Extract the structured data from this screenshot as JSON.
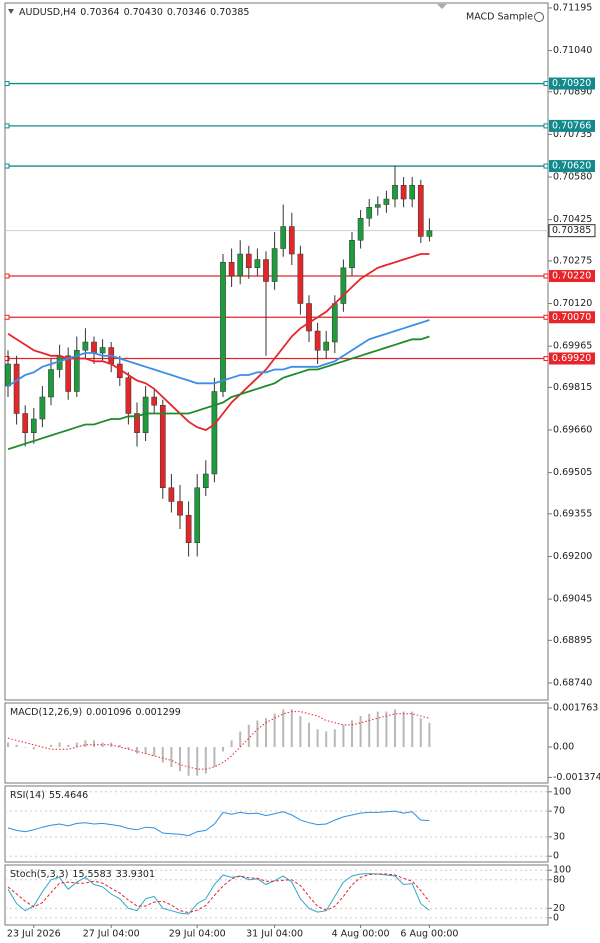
{
  "chart_data": [
    {
      "type": "candlestick",
      "title": "AUDUSD,H4",
      "ohlc_header": [
        0.70364,
        {
          "value": 0.7043,
          "label": "0.70430"
        },
        0.70346,
        0.70385
      ],
      "expert": "MACD Sample",
      "categories": [
        null,
        null,
        null,
        "23 Jul 2026",
        null,
        null,
        null,
        null,
        null,
        null,
        null,
        null,
        "27 Jul 04:00",
        null,
        null,
        null,
        null,
        null,
        null,
        null,
        null,
        null,
        "29 Jul 04:00",
        null,
        null,
        null,
        null,
        null,
        null,
        null,
        null,
        "31 Jul 04:00",
        null,
        null,
        null,
        null,
        null,
        null,
        null,
        null,
        null,
        "4 Aug 00:00",
        null,
        null,
        null,
        null,
        null,
        null,
        null,
        "6 Aug 00:00"
      ],
      "open": [
        0.6982,
        0.699,
        0.6972,
        0.6965,
        0.697,
        0.6978,
        0.6988,
        0.6993,
        0.698,
        0.6995,
        0.6998,
        0.6994,
        0.6996,
        0.699,
        0.6985,
        0.6972,
        0.6965,
        0.6978,
        0.6975,
        0.6945,
        0.694,
        0.6935,
        0.6925,
        0.6945,
        0.695,
        0.698,
        0.7027,
        0.7022,
        0.703,
        0.7025,
        0.7028,
        0.702,
        0.7032,
        0.704,
        0.703,
        0.7012,
        0.7002,
        0.6995,
        0.6998,
        0.7012,
        0.7025,
        0.7035,
        0.7043,
        0.7047,
        0.7048,
        0.705,
        0.7055,
        0.705,
        0.7055,
        0.70364
      ],
      "high": [
        0.6995,
        0.6993,
        0.6975,
        0.6974,
        0.6982,
        0.6992,
        0.6997,
        0.6996,
        0.7,
        0.7003,
        0.7,
        0.6999,
        0.6998,
        0.6993,
        0.6987,
        0.6976,
        0.6982,
        0.6981,
        0.6977,
        0.695,
        0.6946,
        0.694,
        0.695,
        0.6955,
        0.6985,
        0.703,
        0.7032,
        0.7035,
        0.7033,
        0.7032,
        0.7031,
        0.7038,
        0.7048,
        0.7045,
        0.7033,
        0.7015,
        0.7005,
        0.7002,
        0.7015,
        0.7028,
        0.7038,
        0.7046,
        0.705,
        0.7051,
        0.7053,
        0.7062,
        0.7058,
        0.7058,
        0.7057,
        0.7043
      ],
      "low": [
        0.6978,
        0.6968,
        0.696,
        0.6961,
        0.6967,
        0.6975,
        0.6985,
        0.6977,
        0.6978,
        0.6992,
        0.699,
        0.6991,
        0.6987,
        0.6982,
        0.6968,
        0.696,
        0.6962,
        0.6972,
        0.6941,
        0.6936,
        0.693,
        0.692,
        0.692,
        0.6942,
        0.6947,
        0.6978,
        0.7018,
        0.7019,
        0.7021,
        0.7022,
        0.6993,
        0.7017,
        0.7029,
        0.7026,
        0.7008,
        0.6998,
        0.699,
        0.6992,
        0.6994,
        0.7009,
        0.7022,
        0.7032,
        0.704,
        0.7044,
        0.7045,
        0.7047,
        0.7047,
        0.7047,
        0.7034,
        0.70346
      ],
      "close": [
        0.699,
        0.6972,
        0.6965,
        0.697,
        0.6978,
        0.6988,
        0.6993,
        0.698,
        0.6995,
        0.6998,
        0.6994,
        0.6996,
        0.699,
        0.6985,
        0.6972,
        0.6965,
        0.6978,
        0.6975,
        0.6945,
        0.694,
        0.6935,
        0.6925,
        0.6945,
        0.695,
        0.698,
        0.7027,
        0.7022,
        0.703,
        0.7025,
        0.7028,
        0.702,
        0.7032,
        0.704,
        0.703,
        0.7012,
        0.7002,
        0.6995,
        0.6998,
        0.7012,
        0.7025,
        0.7035,
        0.7043,
        0.7047,
        0.7048,
        0.705,
        0.7055,
        0.705,
        0.7055,
        0.70364,
        0.70385
      ],
      "up_color": "#1f9a3c",
      "down_color": "#e0282a",
      "series": [
        {
          "color": "#e8242a",
          "values": [
            0.7001,
            0.6999,
            0.6997,
            0.6995,
            0.6994,
            0.6993,
            0.6993,
            0.6992,
            0.6992,
            0.6992,
            0.6991,
            0.6991,
            0.699,
            0.6988,
            0.6986,
            0.6984,
            0.6983,
            0.6981,
            0.6978,
            0.6975,
            0.6972,
            0.6969,
            0.6967,
            0.6966,
            0.6968,
            0.6972,
            0.6976,
            0.6979,
            0.6982,
            0.6985,
            0.6988,
            0.6992,
            0.6996,
            0.7,
            0.7003,
            0.7005,
            0.7007,
            0.7009,
            0.7012,
            0.7015,
            0.7018,
            0.7021,
            0.7023,
            0.7025,
            0.7026,
            0.7027,
            0.7028,
            0.7029,
            0.703,
            0.703
          ]
        },
        {
          "color": "#3a8ee6",
          "values": [
            0.6982,
            0.6984,
            0.6986,
            0.6987,
            0.6989,
            0.699,
            0.6991,
            0.6992,
            0.6993,
            0.6994,
            0.6994,
            0.6993,
            0.6993,
            0.6992,
            0.6991,
            0.699,
            0.6989,
            0.6988,
            0.6987,
            0.6986,
            0.6985,
            0.6984,
            0.6983,
            0.6983,
            0.6983,
            0.6984,
            0.6985,
            0.6986,
            0.6986,
            0.6987,
            0.6987,
            0.6988,
            0.6988,
            0.6989,
            0.6989,
            0.6989,
            0.6989,
            0.699,
            0.6991,
            0.6993,
            0.6995,
            0.6997,
            0.6999,
            0.7,
            0.7001,
            0.7002,
            0.7003,
            0.7004,
            0.7005,
            0.7006
          ]
        },
        {
          "color": "#1e8c2a",
          "values": [
            0.6959,
            0.696,
            0.6961,
            0.6962,
            0.6963,
            0.6964,
            0.6965,
            0.6966,
            0.6967,
            0.6968,
            0.6968,
            0.6969,
            0.697,
            0.697,
            0.6971,
            0.6971,
            0.6972,
            0.6972,
            0.6972,
            0.6972,
            0.6972,
            0.6972,
            0.6973,
            0.6974,
            0.6975,
            0.6976,
            0.6978,
            0.6979,
            0.698,
            0.6981,
            0.6982,
            0.6983,
            0.6985,
            0.6986,
            0.6987,
            0.6988,
            0.6988,
            0.6989,
            0.699,
            0.6991,
            0.6992,
            0.6993,
            0.6994,
            0.6995,
            0.6996,
            0.6997,
            0.6998,
            0.6999,
            0.6999,
            0.7
          ]
        }
      ],
      "levels": [
        {
          "value": 0.7092,
          "label": "0.70920",
          "color": "#128a8c"
        },
        {
          "value": 0.70766,
          "label": "0.70766",
          "color": "#128a8c"
        },
        {
          "value": 0.7062,
          "label": "0.70620",
          "color": "#128a8c"
        },
        {
          "value": 0.7022,
          "label": "0.70220",
          "color": "#e8242a"
        },
        {
          "value": 0.7007,
          "label": "0.70070",
          "color": "#e8242a"
        },
        {
          "value": 0.6992,
          "label": "0.69920",
          "color": "#e8242a"
        }
      ],
      "last_price": 0.70385,
      "ylim": [
        0.68678,
        0.71213
      ],
      "yticks": [
        0.71195,
        {
          "value": 0.7104,
          "label": "0.71040"
        },
        {
          "value": 0.7089,
          "label": "0.70890"
        },
        0.70735,
        {
          "value": 0.7058,
          "label": "0.70580"
        },
        0.70425,
        0.70275,
        {
          "value": 0.7012,
          "label": "0.70120"
        },
        0.69965,
        0.69815,
        {
          "value": 0.6966,
          "label": "0.69660"
        },
        0.69505,
        0.69355,
        {
          "value": 0.692,
          "label": "0.69200"
        },
        0.69045,
        0.68895,
        {
          "value": 0.6874,
          "label": "0.68740"
        }
      ]
    },
    {
      "type": "macd",
      "title": "MACD(12,26,9)",
      "readouts": [
        0.001096,
        0.001299
      ],
      "series": [
        {
          "style": "histogram",
          "color": "#b8b8b8",
          "values": [
            0.0002,
            0.0001,
            0,
            -0.0001,
            0,
            0.0001,
            0.0002,
            0.0001,
            0.0002,
            0.0003,
            0.0003,
            0.0002,
            0.0002,
            0.0001,
            -0.0001,
            -0.0003,
            -0.0003,
            -0.0004,
            -0.0007,
            -0.0009,
            -0.0011,
            -0.0013,
            -0.0013,
            -0.0012,
            -0.0009,
            -0.0002,
            0.0003,
            0.0007,
            0.001,
            0.0012,
            0.0013,
            0.0015,
            0.0017,
            0.0017,
            0.0014,
            0.0011,
            0.0008,
            0.0007,
            0.0008,
            0.001,
            0.0012,
            0.0014,
            0.0015,
            0.0016,
            0.0016,
            0.0017,
            0.0016,
            0.0016,
            0.0013,
            0.001096
          ]
        },
        {
          "style": "dotted",
          "color": "#e8242a",
          "values": [
            0.0004,
            0.0003,
            0.0002,
            0.0001,
            0,
            -0.0001,
            -0.0001,
            -0.0001,
            0,
            0.0001,
            0.0001,
            0.0001,
            0.0001,
            0,
            -0.0001,
            -0.0002,
            -0.0003,
            -0.0004,
            -0.0005,
            -0.0006,
            -0.0008,
            -0.0009,
            -0.001,
            -0.001,
            -0.0009,
            -0.0007,
            -0.0004,
            0,
            0.0004,
            0.0008,
            0.0011,
            0.0013,
            0.0015,
            0.0016,
            0.0016,
            0.0015,
            0.0014,
            0.0012,
            0.0011,
            0.001,
            0.001,
            0.0011,
            0.0012,
            0.0013,
            0.0014,
            0.0015,
            0.0015,
            0.0015,
            0.0014,
            0.001299
          ]
        }
      ],
      "ylim": [
        -0.001627,
        0.001989
      ],
      "yticks": [
        0.001763,
        {
          "value": 0,
          "label": "0.00"
        },
        -0.001374
      ]
    },
    {
      "type": "line",
      "title": "RSI(14)",
      "readouts": [
        55.4646
      ],
      "series": [
        {
          "style": "solid",
          "color": "#2f8fe0",
          "values": [
            44,
            40,
            38,
            41,
            45,
            48,
            50,
            47,
            51,
            52,
            50,
            51,
            49,
            47,
            43,
            41,
            45,
            44,
            36,
            35,
            34,
            32,
            38,
            40,
            50,
            68,
            65,
            68,
            66,
            67,
            63,
            66,
            69,
            64,
            56,
            52,
            49,
            50,
            56,
            61,
            64,
            67,
            68,
            68,
            69,
            70,
            67,
            69,
            56,
            55.4646
          ]
        }
      ],
      "ylim": [
        -9,
        109
      ],
      "yticks": [
        100,
        70,
        30,
        0
      ],
      "grid": true
    },
    {
      "type": "line",
      "title": "Stoch(5,3,3)",
      "readouts": [
        15.5583,
        33.9301
      ],
      "series": [
        {
          "style": "solid",
          "color": "#2fa8c8",
          "values": [
            60,
            30,
            15,
            25,
            55,
            80,
            85,
            60,
            75,
            85,
            70,
            65,
            50,
            40,
            20,
            15,
            40,
            45,
            20,
            15,
            10,
            8,
            30,
            40,
            70,
            90,
            85,
            88,
            80,
            82,
            70,
            78,
            88,
            75,
            40,
            20,
            12,
            15,
            45,
            75,
            88,
            92,
            93,
            92,
            90,
            88,
            70,
            72,
            30,
            15.5583
          ]
        },
        {
          "style": "dashed",
          "color": "#e8242a",
          "values": [
            65,
            50,
            35,
            23,
            32,
            53,
            73,
            75,
            73,
            73,
            77,
            73,
            62,
            52,
            37,
            25,
            25,
            33,
            35,
            27,
            15,
            11,
            16,
            26,
            47,
            67,
            82,
            88,
            84,
            83,
            77,
            77,
            79,
            80,
            68,
            45,
            24,
            16,
            24,
            45,
            69,
            85,
            91,
            92,
            92,
            90,
            83,
            77,
            57,
            33.9301
          ]
        }
      ],
      "ylim": [
        -15,
        111
      ],
      "yticks": [
        100,
        80,
        20,
        0
      ],
      "grid": true
    }
  ]
}
